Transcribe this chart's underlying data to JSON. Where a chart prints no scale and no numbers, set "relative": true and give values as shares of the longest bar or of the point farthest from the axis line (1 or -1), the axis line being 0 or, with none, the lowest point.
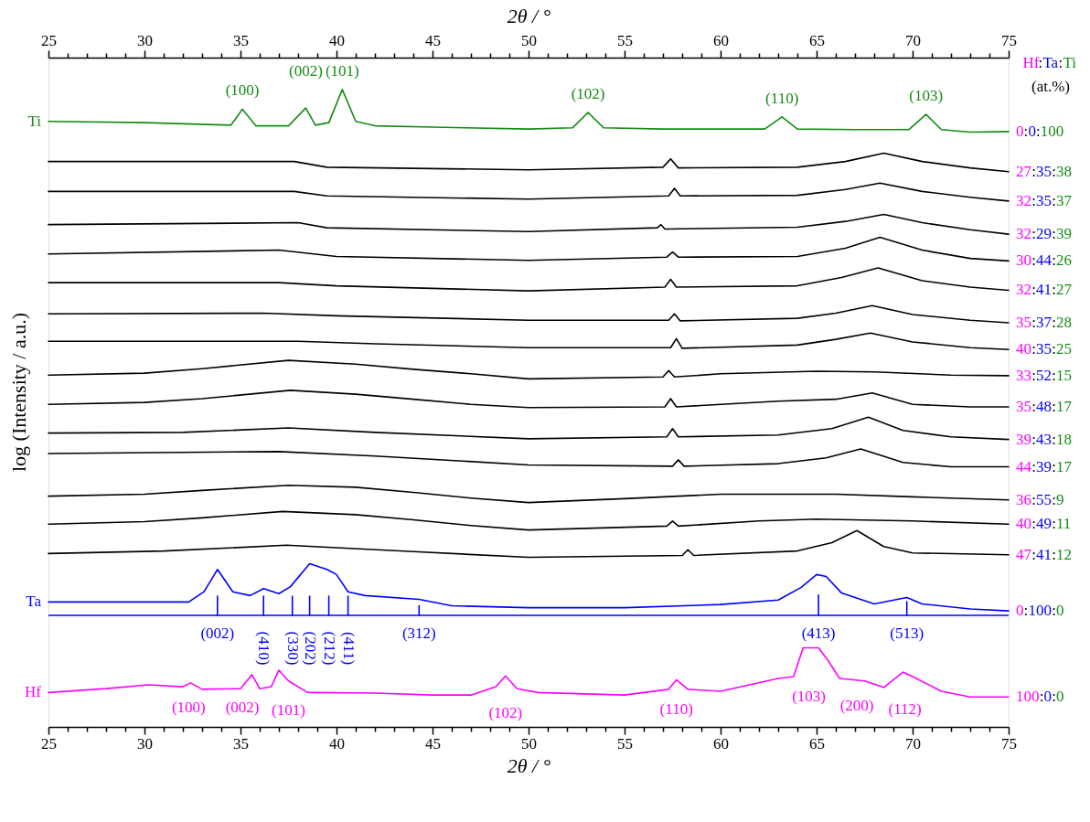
{
  "chart_data": {
    "type": "line",
    "relative": true,
    "xlabel": "2θ / °",
    "x2label": "2θ / °",
    "ylabel": "log (Intensity / a.u.)",
    "legend_title": "Hf:Ta:Ti",
    "xlim": [
      25,
      75
    ],
    "x2lim": [
      25,
      75
    ],
    "xticks": [
      25,
      {
        "value": 26,
        "label": null
      },
      {
        "value": 27,
        "label": null
      },
      {
        "value": 28,
        "label": null
      },
      {
        "value": 29,
        "label": null
      },
      30,
      {
        "value": 31,
        "label": null
      },
      {
        "value": 32,
        "label": null
      },
      {
        "value": 33,
        "label": null
      },
      {
        "value": 34,
        "label": null
      },
      35,
      {
        "value": 36,
        "label": null
      },
      {
        "value": 37,
        "label": null
      },
      {
        "value": 38,
        "label": null
      },
      {
        "value": 39,
        "label": null
      },
      40,
      {
        "value": 41,
        "label": null
      },
      {
        "value": 42,
        "label": null
      },
      {
        "value": 43,
        "label": null
      },
      {
        "value": 44,
        "label": null
      },
      45,
      {
        "value": 46,
        "label": null
      },
      {
        "value": 47,
        "label": null
      },
      {
        "value": 48,
        "label": null
      },
      {
        "value": 49,
        "label": null
      },
      50,
      {
        "value": 51,
        "label": null
      },
      {
        "value": 52,
        "label": null
      },
      {
        "value": 53,
        "label": null
      },
      {
        "value": 54,
        "label": null
      },
      55,
      {
        "value": 56,
        "label": null
      },
      {
        "value": 57,
        "label": null
      },
      {
        "value": 58,
        "label": null
      },
      {
        "value": 59,
        "label": null
      },
      60,
      {
        "value": 61,
        "label": null
      },
      {
        "value": 62,
        "label": null
      },
      {
        "value": 63,
        "label": null
      },
      {
        "value": 64,
        "label": null
      },
      65,
      {
        "value": 66,
        "label": null
      },
      {
        "value": 67,
        "label": null
      },
      {
        "value": 68,
        "label": null
      },
      {
        "value": 69,
        "label": null
      },
      70,
      {
        "value": 71,
        "label": null
      },
      {
        "value": 72,
        "label": null
      },
      {
        "value": 73,
        "label": null
      },
      {
        "value": 74,
        "label": null
      },
      75
    ],
    "x2ticks": [
      25,
      {
        "value": 26,
        "label": null
      },
      {
        "value": 27,
        "label": null
      },
      {
        "value": 28,
        "label": null
      },
      {
        "value": 29,
        "label": null
      },
      30,
      {
        "value": 31,
        "label": null
      },
      {
        "value": 32,
        "label": null
      },
      {
        "value": 33,
        "label": null
      },
      {
        "value": 34,
        "label": null
      },
      35,
      {
        "value": 36,
        "label": null
      },
      {
        "value": 37,
        "label": null
      },
      {
        "value": 38,
        "label": null
      },
      {
        "value": 39,
        "label": null
      },
      40,
      {
        "value": 41,
        "label": null
      },
      {
        "value": 42,
        "label": null
      },
      {
        "value": 43,
        "label": null
      },
      {
        "value": 44,
        "label": null
      },
      45,
      {
        "value": 46,
        "label": null
      },
      {
        "value": 47,
        "label": null
      },
      {
        "value": 48,
        "label": null
      },
      {
        "value": 49,
        "label": null
      },
      50,
      {
        "value": 51,
        "label": null
      },
      {
        "value": 52,
        "label": null
      },
      {
        "value": 53,
        "label": null
      },
      {
        "value": 54,
        "label": null
      },
      55,
      {
        "value": 56,
        "label": null
      },
      {
        "value": 57,
        "label": null
      },
      {
        "value": 58,
        "label": null
      },
      {
        "value": 59,
        "label": null
      },
      60,
      {
        "value": 61,
        "label": null
      },
      {
        "value": 62,
        "label": null
      },
      {
        "value": 63,
        "label": null
      },
      {
        "value": 64,
        "label": null
      },
      65,
      {
        "value": 66,
        "label": null
      },
      {
        "value": 67,
        "label": null
      },
      {
        "value": 68,
        "label": null
      },
      {
        "value": 69,
        "label": null
      },
      70,
      {
        "value": 71,
        "label": null
      },
      {
        "value": 72,
        "label": null
      },
      {
        "value": 73,
        "label": null
      },
      {
        "value": 74,
        "label": null
      },
      75
    ],
    "grid": false,
    "series": [
      {
        "name": "0:0:100",
        "color": "#138c13",
        "x": [
          25,
          30,
          34.5,
          35.1,
          35.8,
          37.5,
          38.4,
          38.9,
          39.6,
          40.3,
          41,
          42,
          45,
          50,
          52.3,
          53.1,
          53.9,
          57,
          62.3,
          63.2,
          64,
          67,
          69.8,
          70.7,
          71.5,
          73,
          75
        ],
        "values": [
          0.95,
          0.948,
          0.944,
          0.969,
          0.943,
          0.943,
          0.971,
          0.944,
          0.948,
          1.0,
          0.95,
          0.943,
          0.941,
          0.938,
          0.94,
          0.964,
          0.94,
          0.938,
          0.938,
          0.957,
          0.938,
          0.937,
          0.937,
          0.961,
          0.937,
          0.933,
          0.934
        ]
      },
      {
        "name": "27:35:38",
        "color": "#000000",
        "x": [
          25,
          37.8,
          39.5,
          50,
          57,
          57.4,
          57.8,
          64,
          66.5,
          68.5,
          70.5,
          73,
          75
        ],
        "values": [
          0.887,
          0.887,
          0.878,
          0.874,
          0.878,
          0.891,
          0.877,
          0.878,
          0.887,
          0.9,
          0.887,
          0.877,
          0.871
        ]
      },
      {
        "name": "32:35:37",
        "color": "#000000",
        "x": [
          25,
          37.8,
          39.5,
          50,
          57.3,
          57.6,
          57.9,
          64,
          66.5,
          68.3,
          70.5,
          73,
          75
        ],
        "values": [
          0.84,
          0.84,
          0.833,
          0.828,
          0.833,
          0.845,
          0.833,
          0.834,
          0.843,
          0.853,
          0.84,
          0.831,
          0.825
        ]
      },
      {
        "name": "32:29:39",
        "color": "#000000",
        "x": [
          25,
          38,
          39.5,
          50,
          56.7,
          56.9,
          57.1,
          64,
          66.5,
          68.5,
          70.5,
          73,
          75
        ],
        "values": [
          0.788,
          0.791,
          0.783,
          0.777,
          0.783,
          0.788,
          0.781,
          0.784,
          0.793,
          0.804,
          0.791,
          0.78,
          0.773
        ]
      },
      {
        "name": "30:44:26",
        "color": "#000000",
        "x": [
          25,
          37,
          40,
          50,
          57.2,
          57.5,
          57.8,
          64,
          66.5,
          68.3,
          70.5,
          73,
          75
        ],
        "values": [
          0.742,
          0.748,
          0.738,
          0.732,
          0.737,
          0.745,
          0.737,
          0.738,
          0.751,
          0.768,
          0.748,
          0.735,
          0.731
        ]
      },
      {
        "name": "32:41:27",
        "color": "#000000",
        "x": [
          25,
          37,
          40,
          50,
          57.1,
          57.4,
          57.7,
          64,
          66.3,
          68.2,
          70.5,
          73,
          75
        ],
        "values": [
          0.697,
          0.697,
          0.692,
          0.684,
          0.69,
          0.702,
          0.69,
          0.692,
          0.705,
          0.72,
          0.7,
          0.69,
          0.685
        ]
      },
      {
        "name": "35:37:28",
        "color": "#000000",
        "x": [
          25,
          36.2,
          40,
          50,
          57.3,
          57.6,
          57.9,
          64,
          66,
          67.9,
          70,
          73,
          75
        ],
        "values": [
          0.648,
          0.649,
          0.645,
          0.638,
          0.638,
          0.648,
          0.637,
          0.641,
          0.649,
          0.661,
          0.647,
          0.638,
          0.634
        ]
      },
      {
        "name": "40:35:25",
        "color": "#000000",
        "x": [
          25,
          38,
          42,
          50,
          57.4,
          57.7,
          58,
          64,
          66,
          67.8,
          70,
          73,
          75
        ],
        "values": [
          0.605,
          0.605,
          0.601,
          0.595,
          0.595,
          0.609,
          0.594,
          0.599,
          0.608,
          0.618,
          0.604,
          0.595,
          0.592
        ]
      },
      {
        "name": "33:52:15",
        "color": "#000000",
        "x": [
          25,
          30,
          33,
          37.5,
          41,
          44,
          47,
          50,
          57,
          57.3,
          57.6,
          60,
          65,
          68,
          72,
          75
        ],
        "values": [
          0.552,
          0.555,
          0.562,
          0.575,
          0.569,
          0.561,
          0.554,
          0.546,
          0.549,
          0.559,
          0.549,
          0.554,
          0.558,
          0.557,
          0.552,
          0.551
        ]
      },
      {
        "name": "35:48:17",
        "color": "#000000",
        "x": [
          25,
          30,
          33,
          37.6,
          41,
          44,
          47,
          50,
          57.1,
          57.4,
          57.7,
          63,
          66,
          67.9,
          70,
          73,
          75
        ],
        "values": [
          0.506,
          0.509,
          0.515,
          0.528,
          0.522,
          0.514,
          0.506,
          0.501,
          0.502,
          0.515,
          0.502,
          0.511,
          0.514,
          0.524,
          0.506,
          0.502,
          0.502
        ]
      },
      {
        "name": "39:43:18",
        "color": "#000000",
        "x": [
          25,
          32,
          37.5,
          42,
          50,
          57.2,
          57.5,
          57.8,
          63,
          65.8,
          67.7,
          69.5,
          72,
          75
        ],
        "values": [
          0.461,
          0.462,
          0.469,
          0.462,
          0.452,
          0.455,
          0.468,
          0.455,
          0.458,
          0.468,
          0.486,
          0.465,
          0.455,
          0.451
        ]
      },
      {
        "name": "44:39:17",
        "color": "#000000",
        "x": [
          25,
          37,
          42,
          50,
          57.5,
          57.8,
          58.1,
          63,
          65.5,
          67.3,
          69.5,
          72,
          75
        ],
        "values": [
          0.429,
          0.432,
          0.425,
          0.411,
          0.409,
          0.419,
          0.409,
          0.413,
          0.422,
          0.436,
          0.415,
          0.408,
          0.408
        ]
      },
      {
        "name": "36:55:9",
        "color": "#000000",
        "x": [
          25,
          30,
          33,
          37.5,
          41,
          44,
          47,
          50,
          55,
          60,
          66,
          70,
          75
        ],
        "values": [
          0.362,
          0.365,
          0.371,
          0.379,
          0.376,
          0.368,
          0.359,
          0.352,
          0.358,
          0.365,
          0.365,
          0.361,
          0.356
        ]
      },
      {
        "name": "40:49:11",
        "color": "#000000",
        "x": [
          25,
          30,
          33,
          37.2,
          41,
          44,
          47,
          50,
          57.2,
          57.5,
          57.8,
          62,
          65,
          70,
          75
        ],
        "values": [
          0.318,
          0.322,
          0.328,
          0.338,
          0.333,
          0.325,
          0.316,
          0.309,
          0.315,
          0.323,
          0.315,
          0.323,
          0.326,
          0.323,
          0.318
        ]
      },
      {
        "name": "47:41:12",
        "color": "#000000",
        "x": [
          25,
          31,
          37.4,
          44,
          50,
          58,
          58.3,
          58.6,
          64,
          65.8,
          67.1,
          68.5,
          70,
          75
        ],
        "values": [
          0.272,
          0.276,
          0.285,
          0.275,
          0.266,
          0.269,
          0.278,
          0.269,
          0.276,
          0.289,
          0.308,
          0.283,
          0.273,
          0.27
        ]
      },
      {
        "name": "0:100:0",
        "color": "#0000ff",
        "x": [
          25,
          32.3,
          33.1,
          33.8,
          34.6,
          35.5,
          36.2,
          37,
          37.6,
          38.6,
          39.5,
          40,
          40.6,
          41.5,
          44.3,
          46,
          50,
          55,
          60,
          63,
          64.2,
          65,
          65.5,
          66.3,
          68,
          69.7,
          70.5,
          73,
          75
        ],
        "values": [
          0.196,
          0.196,
          0.212,
          0.247,
          0.212,
          0.206,
          0.217,
          0.209,
          0.22,
          0.256,
          0.247,
          0.239,
          0.212,
          0.206,
          0.2,
          0.19,
          0.187,
          0.187,
          0.192,
          0.199,
          0.219,
          0.239,
          0.236,
          0.21,
          0.193,
          0.203,
          0.193,
          0.185,
          0.182
        ]
      },
      {
        "name": "100:0:0",
        "color": "#ff00ff",
        "x": [
          25,
          28,
          30.2,
          32,
          32.4,
          33,
          35,
          35.6,
          36,
          36.6,
          37,
          37.5,
          38.5,
          42,
          45,
          47,
          48.3,
          48.8,
          49.4,
          50.5,
          55,
          57.3,
          57.7,
          58.3,
          60,
          63,
          63.8,
          64.3,
          65.1,
          65.6,
          66.2,
          67.5,
          68.5,
          69.5,
          70,
          71.5,
          73,
          75
        ],
        "values": [
          0.054,
          0.06,
          0.066,
          0.063,
          0.069,
          0.059,
          0.06,
          0.082,
          0.06,
          0.063,
          0.089,
          0.072,
          0.054,
          0.053,
          0.05,
          0.05,
          0.063,
          0.08,
          0.06,
          0.054,
          0.05,
          0.059,
          0.074,
          0.059,
          0.056,
          0.076,
          0.079,
          0.124,
          0.124,
          0.104,
          0.076,
          0.072,
          0.062,
          0.086,
          0.079,
          0.056,
          0.047,
          0.047
        ]
      },
      {
        "color": "#0000ff",
        "x": [
          33.8,
          33.8
        ],
        "values": [
          0.175,
          0.205
        ]
      },
      {
        "color": "#0000ff",
        "x": [
          36.2,
          36.2
        ],
        "values": [
          0.175,
          0.205
        ]
      },
      {
        "color": "#0000ff",
        "x": [
          37.7,
          37.7
        ],
        "values": [
          0.175,
          0.205
        ]
      },
      {
        "color": "#0000ff",
        "x": [
          38.6,
          38.6
        ],
        "values": [
          0.175,
          0.205
        ]
      },
      {
        "color": "#0000ff",
        "x": [
          39.6,
          39.6
        ],
        "values": [
          0.175,
          0.205
        ]
      },
      {
        "color": "#0000ff",
        "x": [
          40.6,
          40.6
        ],
        "values": [
          0.175,
          0.205
        ]
      },
      {
        "color": "#0000ff",
        "x": [
          44.3,
          44.3
        ],
        "values": [
          0.175,
          0.19
        ]
      },
      {
        "color": "#0000ff",
        "x": [
          65.1,
          65.1
        ],
        "values": [
          0.175,
          0.207
        ]
      },
      {
        "color": "#0000ff",
        "x": [
          69.7,
          69.7
        ],
        "values": [
          0.175,
          0.196
        ]
      }
    ],
    "ref_lines": [
      {
        "axis": "y",
        "value": 0.175,
        "color": "#0000ff"
      }
    ],
    "annotations": [
      {
        "text": "Ti",
        "x": 25,
        "y": 0.95
      },
      {
        "text": "Ta",
        "x": 25,
        "y": 0.196
      },
      {
        "text": "Hf",
        "x": 25,
        "y": 0.054
      },
      {
        "text": "(100)",
        "x": 35.1,
        "y": 0.969
      },
      {
        "text": "(002)",
        "x": 38.4,
        "y": 0.971
      },
      {
        "text": "(101)",
        "x": 40.3,
        "y": 1.0
      },
      {
        "text": "(102)",
        "x": 53.1,
        "y": 0.964
      },
      {
        "text": "(110)",
        "x": 63.2,
        "y": 0.957
      },
      {
        "text": "(103)",
        "x": 70.7,
        "y": 0.961
      },
      {
        "text": "(002)",
        "x": 33.8,
        "y": 0.175
      },
      {
        "text": "(410)",
        "x": 36.2,
        "y": 0.175
      },
      {
        "text": "(330)",
        "x": 37.7,
        "y": 0.175
      },
      {
        "text": "(202)",
        "x": 38.6,
        "y": 0.175
      },
      {
        "text": "(212)",
        "x": 39.6,
        "y": 0.175
      },
      {
        "text": "(411)",
        "x": 40.6,
        "y": 0.175
      },
      {
        "text": "(312)",
        "x": 44.3,
        "y": 0.175
      },
      {
        "text": "(413)",
        "x": 65.1,
        "y": 0.175
      },
      {
        "text": "(513)",
        "x": 69.7,
        "y": 0.175
      },
      {
        "text": "(100)",
        "x": 32.3,
        "y": 0.068
      },
      {
        "text": "(002)",
        "x": 35.1,
        "y": 0.064
      },
      {
        "text": "(101)",
        "x": 37.5,
        "y": 0.072
      },
      {
        "text": "(102)",
        "x": 48.8,
        "y": 0.08
      },
      {
        "text": "(110)",
        "x": 57.7,
        "y": 0.074
      },
      {
        "text": "(103)",
        "x": 64.6,
        "y": 0.124
      },
      {
        "text": "(200)",
        "x": 67.1,
        "y": 0.073
      },
      {
        "text": "(112)",
        "x": 69.6,
        "y": 0.085
      },
      "(at.%)"
    ]
  }
}
